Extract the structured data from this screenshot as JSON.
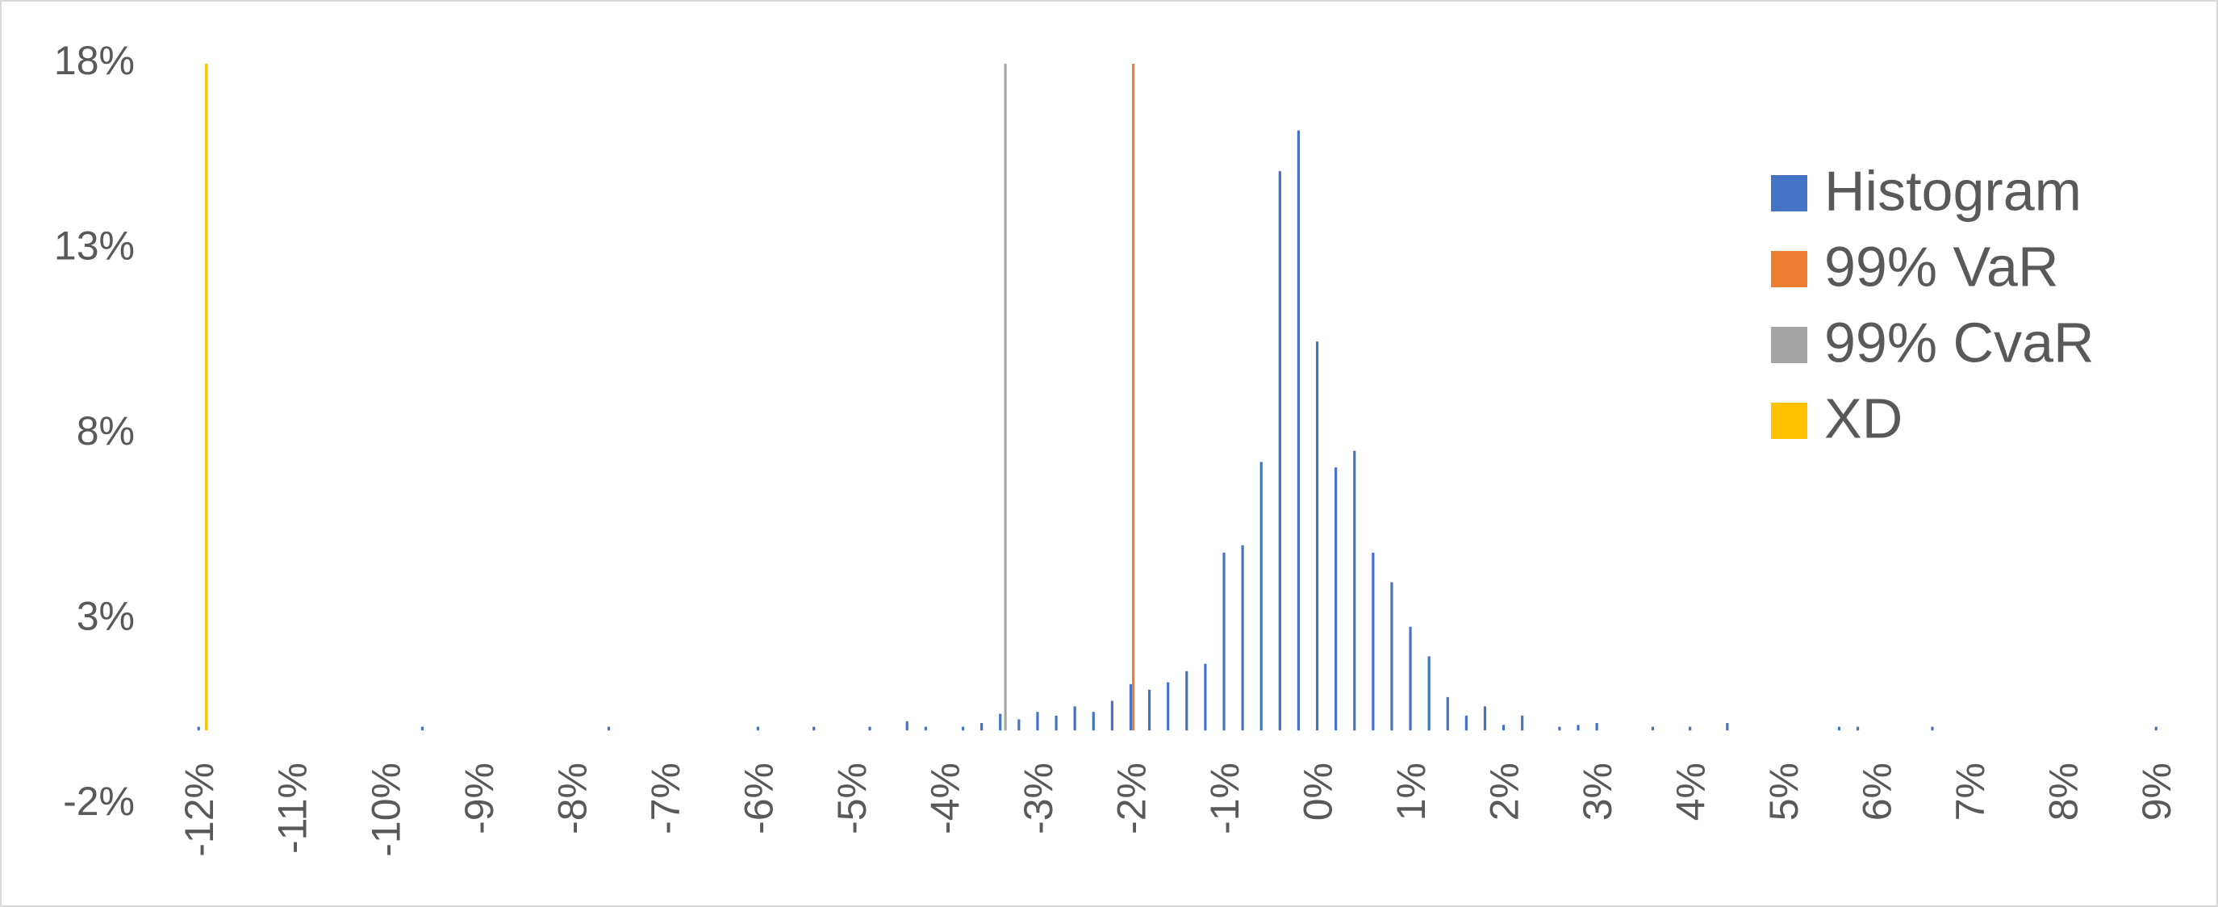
{
  "chart_data": {
    "type": "bar",
    "categories": [
      "-12%",
      null,
      null,
      null,
      null,
      "-11%",
      null,
      null,
      null,
      null,
      "-10%",
      null,
      null,
      null,
      null,
      "-9%",
      null,
      null,
      null,
      null,
      "-8%",
      null,
      null,
      null,
      null,
      "-7%",
      null,
      null,
      null,
      null,
      "-6%",
      null,
      null,
      null,
      null,
      "-5%",
      null,
      null,
      null,
      null,
      "-4%",
      null,
      null,
      null,
      null,
      "-3%",
      null,
      null,
      null,
      null,
      "-2%",
      null,
      null,
      null,
      null,
      "-1%",
      null,
      null,
      null,
      null,
      "0%",
      null,
      null,
      null,
      null,
      "1%",
      null,
      null,
      null,
      null,
      "2%",
      null,
      null,
      null,
      null,
      "3%",
      null,
      null,
      null,
      null,
      "4%",
      null,
      null,
      null,
      null,
      "5%",
      null,
      null,
      null,
      null,
      "6%",
      null,
      null,
      null,
      null,
      "7%",
      null,
      null,
      null,
      null,
      "8%",
      null,
      null,
      null,
      null,
      "9%"
    ],
    "series": [
      {
        "name": "Histogram",
        "color": "#4472c4",
        "values": [
          0.1,
          0,
          0,
          0,
          0,
          0,
          0,
          0,
          0,
          0,
          0,
          0,
          0.1,
          0,
          0,
          0,
          0,
          0,
          0,
          0,
          0,
          0,
          0.1,
          0,
          0,
          0,
          0,
          0,
          0,
          0,
          0.1,
          0,
          0,
          0.1,
          0,
          0,
          0.1,
          0,
          0.25,
          0.1,
          0,
          0.1,
          0.2,
          0.45,
          0.3,
          0.5,
          0.4,
          0.65,
          0.5,
          0.8,
          1.25,
          1.1,
          1.3,
          1.6,
          1.8,
          4.8,
          5.0,
          7.25,
          15.1,
          16.2,
          10.5,
          7.1,
          7.55,
          4.8,
          4.0,
          2.8,
          2.0,
          0.9,
          0.4,
          0.65,
          0.15,
          0.4,
          0,
          0.1,
          0.15,
          0.2,
          0,
          0,
          0.1,
          0,
          0.1,
          0,
          0.2,
          0,
          0,
          0,
          0,
          0,
          0.1,
          0.1,
          0,
          0,
          0,
          0.1,
          0,
          0,
          0,
          0,
          0,
          0,
          0,
          0,
          0,
          0,
          0,
          0.1
        ]
      },
      {
        "name": "99% VaR",
        "color": "#ed7d31",
        "values": [
          null,
          null,
          null,
          null,
          null,
          null,
          null,
          null,
          null,
          null,
          null,
          null,
          null,
          null,
          null,
          null,
          null,
          null,
          null,
          null,
          null,
          null,
          null,
          null,
          null,
          null,
          null,
          null,
          null,
          null,
          null,
          null,
          null,
          null,
          null,
          null,
          null,
          null,
          null,
          null,
          null,
          null,
          null,
          null,
          null,
          null,
          null,
          null,
          null,
          null,
          18,
          null,
          null,
          null,
          null,
          null,
          null,
          null,
          null,
          null,
          null,
          null,
          null,
          null,
          null,
          null,
          null,
          null,
          null,
          null,
          null,
          null,
          null,
          null,
          null,
          null,
          null,
          null,
          null,
          null,
          null,
          null,
          null,
          null,
          null,
          null,
          null,
          null,
          null,
          null,
          null,
          null,
          null,
          null,
          null,
          null,
          null,
          null,
          null,
          null,
          null,
          null,
          null,
          null,
          null,
          null
        ]
      },
      {
        "name": "99% CvaR",
        "color": "#a5a5a5",
        "values": [
          null,
          null,
          null,
          null,
          null,
          null,
          null,
          null,
          null,
          null,
          null,
          null,
          null,
          null,
          null,
          null,
          null,
          null,
          null,
          null,
          null,
          null,
          null,
          null,
          null,
          null,
          null,
          null,
          null,
          null,
          null,
          null,
          null,
          null,
          null,
          null,
          null,
          null,
          null,
          null,
          null,
          null,
          null,
          18,
          null,
          null,
          null,
          null,
          null,
          null,
          null,
          null,
          null,
          null,
          null,
          null,
          null,
          null,
          null,
          null,
          null,
          null,
          null,
          null,
          null,
          null,
          null,
          null,
          null,
          null,
          null,
          null,
          null,
          null,
          null,
          null,
          null,
          null,
          null,
          null,
          null,
          null,
          null,
          null,
          null,
          null,
          null,
          null,
          null,
          null,
          null,
          null,
          null,
          null,
          null,
          null,
          null,
          null,
          null,
          null,
          null,
          null,
          null,
          null,
          null,
          null
        ]
      },
      {
        "name": "XD",
        "color": "#ffc000",
        "values": [
          18,
          null,
          null,
          null,
          null,
          null,
          null,
          null,
          null,
          null,
          null,
          null,
          null,
          null,
          null,
          null,
          null,
          null,
          null,
          null,
          null,
          null,
          null,
          null,
          null,
          null,
          null,
          null,
          null,
          null,
          null,
          null,
          null,
          null,
          null,
          null,
          null,
          null,
          null,
          null,
          null,
          null,
          null,
          null,
          null,
          null,
          null,
          null,
          null,
          null,
          null,
          null,
          null,
          null,
          null,
          null,
          null,
          null,
          null,
          null,
          null,
          null,
          null,
          null,
          null,
          null,
          null,
          null,
          null,
          null,
          null,
          null,
          null,
          null,
          null,
          null,
          null,
          null,
          null,
          null,
          null,
          null,
          null,
          null,
          null,
          null,
          null,
          null,
          null,
          null,
          null,
          null,
          null,
          null,
          null,
          null,
          null,
          null,
          null,
          null,
          null,
          null,
          null,
          null,
          null,
          null
        ]
      }
    ],
    "ylim": [
      -2,
      18
    ],
    "yticks": [
      {
        "value": -2,
        "label": "-2%"
      },
      {
        "value": 3,
        "label": "3%"
      },
      {
        "value": 8,
        "label": "8%"
      },
      {
        "value": 13,
        "label": "13%"
      },
      {
        "value": 18,
        "label": "18%"
      }
    ],
    "grid": false,
    "legend": "right"
  }
}
